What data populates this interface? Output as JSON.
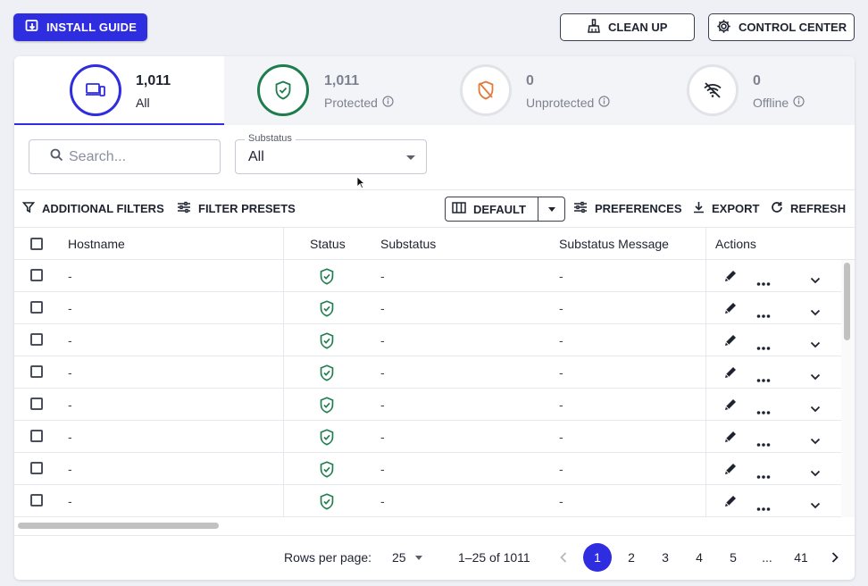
{
  "header": {
    "install_guide": "INSTALL GUIDE",
    "clean_up": "CLEAN UP",
    "control_center": "CONTROL CENTER"
  },
  "stats": [
    {
      "count": "1,011",
      "label": "All"
    },
    {
      "count": "1,011",
      "label": "Protected"
    },
    {
      "count": "0",
      "label": "Unprotected"
    },
    {
      "count": "0",
      "label": "Offline"
    }
  ],
  "filters": {
    "search_placeholder": "Search...",
    "substatus_label": "Substatus",
    "substatus_value": "All"
  },
  "toolbar": {
    "additional_filters": "ADDITIONAL FILTERS",
    "filter_presets": "FILTER PRESETS",
    "view": "DEFAULT",
    "preferences": "PREFERENCES",
    "export": "EXPORT",
    "refresh": "REFRESH"
  },
  "table": {
    "columns": [
      "Hostname",
      "Status",
      "Substatus",
      "Substatus Message",
      "Actions"
    ],
    "rows": [
      {
        "hostname": "-",
        "status": "protected",
        "substatus": "-",
        "message": "-"
      },
      {
        "hostname": "-",
        "status": "protected",
        "substatus": "-",
        "message": "-"
      },
      {
        "hostname": "-",
        "status": "protected",
        "substatus": "-",
        "message": "-"
      },
      {
        "hostname": "-",
        "status": "protected",
        "substatus": "-",
        "message": "-"
      },
      {
        "hostname": "-",
        "status": "protected",
        "substatus": "-",
        "message": "-"
      },
      {
        "hostname": "-",
        "status": "protected",
        "substatus": "-",
        "message": "-"
      },
      {
        "hostname": "-",
        "status": "protected",
        "substatus": "-",
        "message": "-"
      },
      {
        "hostname": "-",
        "status": "protected",
        "substatus": "-",
        "message": "-"
      }
    ]
  },
  "pagination": {
    "rows_per_page_label": "Rows per page:",
    "rows_per_page": "25",
    "range": "1–25 of 1011",
    "pages": [
      "1",
      "2",
      "3",
      "4",
      "5",
      "...",
      "41"
    ],
    "current": "1"
  },
  "colors": {
    "accent": "#2f2de0",
    "protected": "#1e7d4d",
    "unprotected": "#e07b3c"
  }
}
